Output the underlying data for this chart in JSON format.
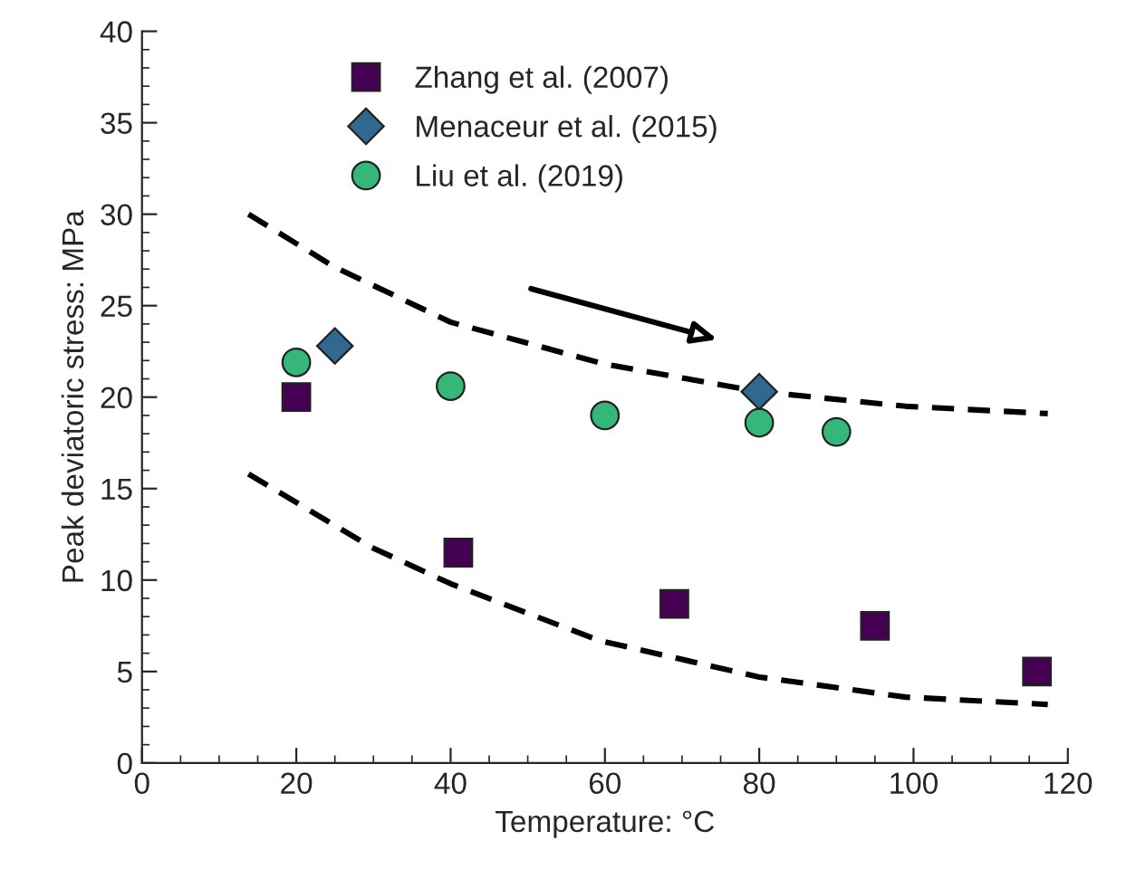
{
  "chart_data": {
    "type": "scatter",
    "xlabel": "Temperature: °C",
    "ylabel": "Peak deviatoric stress: MPa",
    "xlim": [
      0,
      120
    ],
    "xticks": [
      0,
      20,
      40,
      60,
      80,
      100,
      120
    ],
    "ylim": [
      0,
      40
    ],
    "yticks": [
      0,
      5,
      10,
      15,
      20,
      25,
      30,
      35,
      40
    ],
    "grid": false,
    "legend": "top left",
    "series": [
      {
        "name": "Zhang et al. (2007)",
        "color": "#440154",
        "marker": "square",
        "x": [
          20,
          41,
          69,
          95,
          116
        ],
        "values": [
          20,
          11.5,
          8.7,
          7.5,
          5.0
        ]
      },
      {
        "name": "Menaceur et al. (2015)",
        "color": "#31688e",
        "marker": "diamond",
        "x": [
          25,
          80
        ],
        "values": [
          22.8,
          20.3
        ]
      },
      {
        "name": "Liu et al. (2019)",
        "color": "#35b779",
        "marker": "circle",
        "x": [
          20,
          40,
          60,
          80,
          90
        ],
        "values": [
          21.9,
          20.6,
          19.0,
          18.6,
          18.1
        ]
      },
      {
        "type": "line",
        "color": "#000000",
        "line_style": "dashed",
        "marker": "none",
        "x": [
          13.8,
          25,
          40,
          60,
          80,
          99,
          117.4
        ],
        "values": [
          30,
          27.1,
          24.1,
          21.8,
          20.3,
          19.5,
          19.1
        ]
      },
      {
        "type": "line",
        "color": "#000000",
        "line_style": "dashed",
        "marker": "none",
        "x": [
          13.8,
          29.7,
          40,
          59.2,
          80,
          99,
          117.4
        ],
        "values": [
          15.8,
          11.8,
          9.8,
          6.7,
          4.7,
          3.6,
          3.2
        ]
      }
    ]
  }
}
